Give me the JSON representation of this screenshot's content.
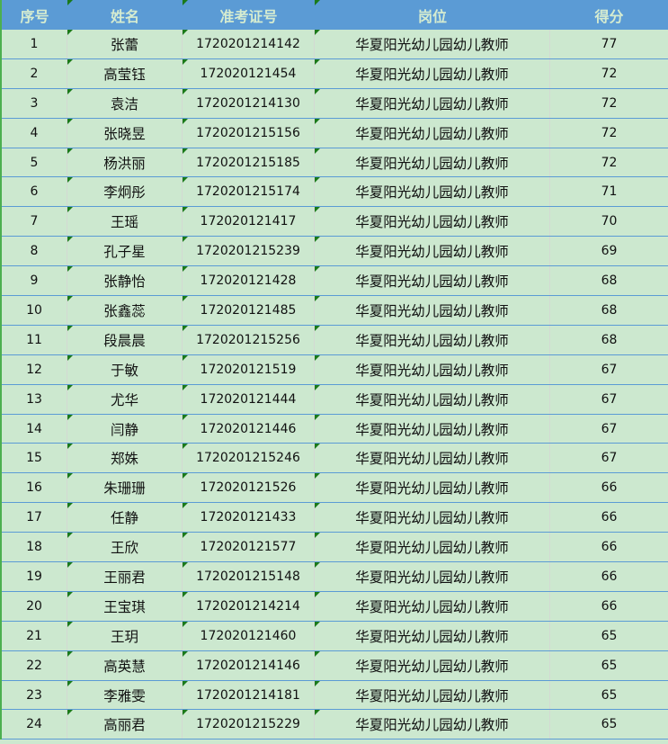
{
  "columns": [
    "序号",
    "姓名",
    "准考证号",
    "岗位",
    "得分"
  ],
  "rows": [
    [
      "1",
      "张蕾",
      "1720201214142",
      "华夏阳光幼儿园幼儿教师",
      "77"
    ],
    [
      "2",
      "高莹钰",
      "172020121454",
      "华夏阳光幼儿园幼儿教师",
      "72"
    ],
    [
      "3",
      "袁洁",
      "1720201214130",
      "华夏阳光幼儿园幼儿教师",
      "72"
    ],
    [
      "4",
      "张晓昱",
      "1720201215156",
      "华夏阳光幼儿园幼儿教师",
      "72"
    ],
    [
      "5",
      "杨洪丽",
      "1720201215185",
      "华夏阳光幼儿园幼儿教师",
      "72"
    ],
    [
      "6",
      "李炯彤",
      "1720201215174",
      "华夏阳光幼儿园幼儿教师",
      "71"
    ],
    [
      "7",
      "王瑶",
      "172020121417",
      "华夏阳光幼儿园幼儿教师",
      "70"
    ],
    [
      "8",
      "孔子星",
      "1720201215239",
      "华夏阳光幼儿园幼儿教师",
      "69"
    ],
    [
      "9",
      "张静怡",
      "172020121428",
      "华夏阳光幼儿园幼儿教师",
      "68"
    ],
    [
      "10",
      "张鑫蕊",
      "172020121485",
      "华夏阳光幼儿园幼儿教师",
      "68"
    ],
    [
      "11",
      "段晨晨",
      "1720201215256",
      "华夏阳光幼儿园幼儿教师",
      "68"
    ],
    [
      "12",
      "于敏",
      "172020121519",
      "华夏阳光幼儿园幼儿教师",
      "67"
    ],
    [
      "13",
      "尤华",
      "172020121444",
      "华夏阳光幼儿园幼儿教师",
      "67"
    ],
    [
      "14",
      "闫静",
      "172020121446",
      "华夏阳光幼儿园幼儿教师",
      "67"
    ],
    [
      "15",
      "郑姝",
      "1720201215246",
      "华夏阳光幼儿园幼儿教师",
      "67"
    ],
    [
      "16",
      "朱珊珊",
      "172020121526",
      "华夏阳光幼儿园幼儿教师",
      "66"
    ],
    [
      "17",
      "任静",
      "172020121433",
      "华夏阳光幼儿园幼儿教师",
      "66"
    ],
    [
      "18",
      "王欣",
      "172020121577",
      "华夏阳光幼儿园幼儿教师",
      "66"
    ],
    [
      "19",
      "王丽君",
      "1720201215148",
      "华夏阳光幼儿园幼儿教师",
      "66"
    ],
    [
      "20",
      "王宝琪",
      "1720201214214",
      "华夏阳光幼儿园幼儿教师",
      "66"
    ],
    [
      "21",
      "王玥",
      "172020121460",
      "华夏阳光幼儿园幼儿教师",
      "65"
    ],
    [
      "22",
      "高英慧",
      "1720201214146",
      "华夏阳光幼儿园幼儿教师",
      "65"
    ],
    [
      "23",
      "李雅雯",
      "1720201214181",
      "华夏阳光幼儿园幼儿教师",
      "65"
    ],
    [
      "24",
      "高丽君",
      "1720201215229",
      "华夏阳光幼儿园幼儿教师",
      "65"
    ]
  ],
  "colors": {
    "header_bg": "#5b9bd5",
    "header_text": "#d6ecd0",
    "row_bg": "#cce8cf",
    "row_border": "#5b9bd5",
    "error_marker": "#1a7a1a"
  }
}
